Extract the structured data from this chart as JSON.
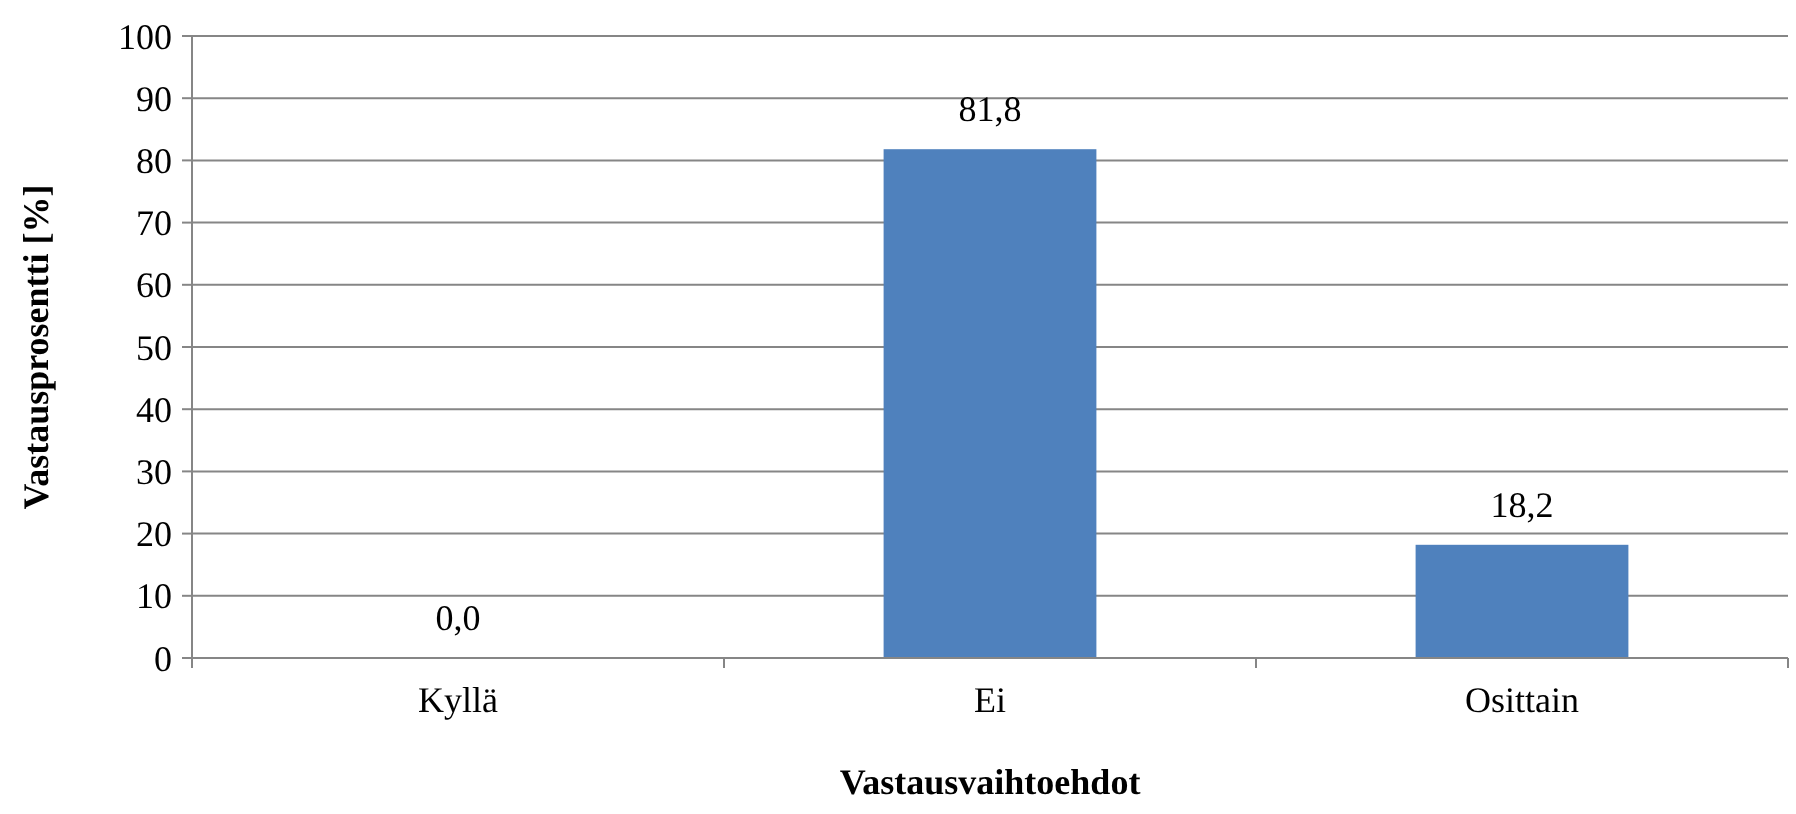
{
  "chart_data": {
    "type": "bar",
    "xlabel": "Vastausvaihtoehdot",
    "ylabel": "Vastausprosentti [%]",
    "categories": [
      "Kyllä",
      "Ei",
      "Osittain"
    ],
    "values": [
      0.0,
      81.8,
      18.2
    ],
    "color": "#4f81bd",
    "value_labels": [
      "0,0",
      "81,8",
      "18,2"
    ],
    "ylim": [
      0,
      100
    ],
    "yticks": [
      0,
      10,
      20,
      30,
      40,
      50,
      60,
      70,
      80,
      90,
      100
    ],
    "grid": "y"
  }
}
